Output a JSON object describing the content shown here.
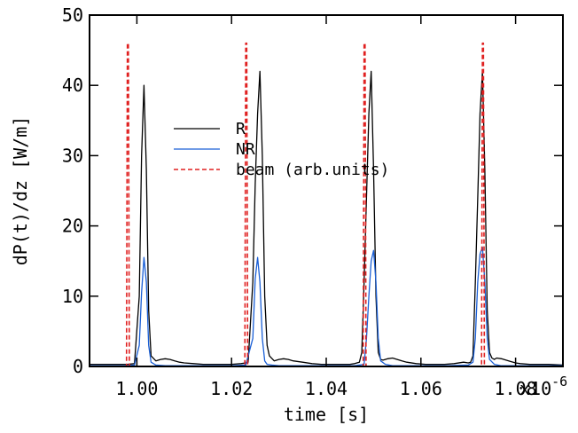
{
  "chart_data": {
    "type": "line",
    "title": "",
    "xlabel": "time [s]",
    "ylabel": "dP(t)/dz [W/m]",
    "x_multiplier_label": "x10",
    "x_multiplier_exponent": "-6",
    "xlim": [
      0.99,
      1.09
    ],
    "ylim": [
      0,
      50
    ],
    "xticks": [
      1.0,
      1.02,
      1.04,
      1.06,
      1.08
    ],
    "xtick_labels": [
      "1.00",
      "1.02",
      "1.04",
      "1.06",
      "1.08"
    ],
    "yticks": [
      0,
      10,
      20,
      30,
      40,
      50
    ],
    "ytick_labels": [
      "0",
      "10",
      "20",
      "30",
      "40",
      "50"
    ],
    "grid": false,
    "legend_position": "upper-center",
    "series": [
      {
        "name": "R",
        "color": "#000000",
        "style": "solid",
        "x": [
          0.99,
          0.998,
          0.9995,
          1.0005,
          1.001,
          1.0015,
          1.002,
          1.0025,
          1.003,
          1.004,
          1.005,
          1.006,
          1.007,
          1.008,
          1.009,
          1.01,
          1.012,
          1.014,
          1.016,
          1.018,
          1.02,
          1.022,
          1.023,
          1.0235,
          1.0245,
          1.025,
          1.0255,
          1.026,
          1.0265,
          1.027,
          1.0275,
          1.028,
          1.029,
          1.03,
          1.031,
          1.032,
          1.033,
          1.035,
          1.037,
          1.039,
          1.042,
          1.044,
          1.045,
          1.046,
          1.047,
          1.0475,
          1.048,
          1.0485,
          1.049,
          1.0495,
          1.05,
          1.0505,
          1.051,
          1.0515,
          1.052,
          1.053,
          1.054,
          1.055,
          1.056,
          1.057,
          1.059,
          1.061,
          1.063,
          1.065,
          1.067,
          1.069,
          1.07,
          1.0705,
          1.071,
          1.0715,
          1.072,
          1.0725,
          1.073,
          1.0735,
          1.074,
          1.0745,
          1.075,
          1.0755,
          1.076,
          1.077,
          1.078,
          1.079,
          1.08,
          1.081,
          1.083,
          1.085,
          1.087,
          1.09
        ],
        "y": [
          0.3,
          0.3,
          0.4,
          10,
          30,
          40,
          28,
          8,
          1.5,
          0.8,
          1.0,
          1.1,
          1.0,
          0.8,
          0.6,
          0.5,
          0.4,
          0.3,
          0.3,
          0.3,
          0.3,
          0.4,
          0.5,
          0.6,
          12,
          26,
          36,
          42,
          30,
          10,
          3,
          1.5,
          0.8,
          1.0,
          1.1,
          1.0,
          0.8,
          0.6,
          0.4,
          0.3,
          0.3,
          0.3,
          0.3,
          0.4,
          0.6,
          2,
          12,
          24,
          36,
          42,
          28,
          10,
          2,
          1.0,
          0.9,
          1.1,
          1.2,
          1.0,
          0.8,
          0.6,
          0.4,
          0.3,
          0.3,
          0.3,
          0.4,
          0.6,
          0.5,
          0.6,
          1.5,
          12,
          24,
          36,
          42,
          28,
          8,
          2,
          1.2,
          1.0,
          1.2,
          1.1,
          0.9,
          0.7,
          0.5,
          0.4,
          0.3,
          0.3,
          0.3,
          0.2
        ]
      },
      {
        "name": "NR",
        "color": "#1a5fd6",
        "style": "solid",
        "x": [
          0.99,
          0.998,
          0.9995,
          1.0005,
          1.001,
          1.0015,
          1.002,
          1.0025,
          1.003,
          1.004,
          1.006,
          1.01,
          1.02,
          1.023,
          1.0245,
          1.025,
          1.0255,
          1.026,
          1.0265,
          1.027,
          1.0275,
          1.0285,
          1.03,
          1.04,
          1.046,
          1.048,
          1.0485,
          1.049,
          1.0495,
          1.05,
          1.0505,
          1.051,
          1.0515,
          1.0525,
          1.054,
          1.065,
          1.07,
          1.071,
          1.0715,
          1.072,
          1.0725,
          1.073,
          1.0735,
          1.074,
          1.0745,
          1.0755,
          1.077,
          1.09
        ],
        "y": [
          0.1,
          0.1,
          0.2,
          3,
          10.5,
          15.5,
          12,
          3,
          0.6,
          0.2,
          0.1,
          0.1,
          0.1,
          0.2,
          4,
          12.5,
          15.5,
          12,
          4,
          0.8,
          0.3,
          0.2,
          0.1,
          0.1,
          0.1,
          0.3,
          4,
          10,
          15,
          16.5,
          12,
          4,
          0.8,
          0.3,
          0.1,
          0.1,
          0.2,
          0.6,
          4,
          12,
          16,
          17,
          12,
          4,
          1,
          0.3,
          0.1,
          0.1
        ]
      },
      {
        "name": "beam (arb.units)",
        "color": "#e02020",
        "style": "dashed",
        "x": [
          0.99,
          0.9978,
          0.998,
          0.9982,
          0.9984,
          1.02,
          1.0228,
          1.023,
          1.0232,
          1.0234,
          1.045,
          1.0478,
          1.048,
          1.0482,
          1.0484,
          1.07,
          1.0728,
          1.073,
          1.0732,
          1.0734,
          1.09
        ],
        "y": [
          0,
          0,
          46,
          46,
          0,
          0,
          0,
          46,
          46,
          0,
          0,
          0,
          46,
          46,
          0,
          0,
          0,
          46,
          46,
          0,
          0
        ]
      }
    ]
  }
}
